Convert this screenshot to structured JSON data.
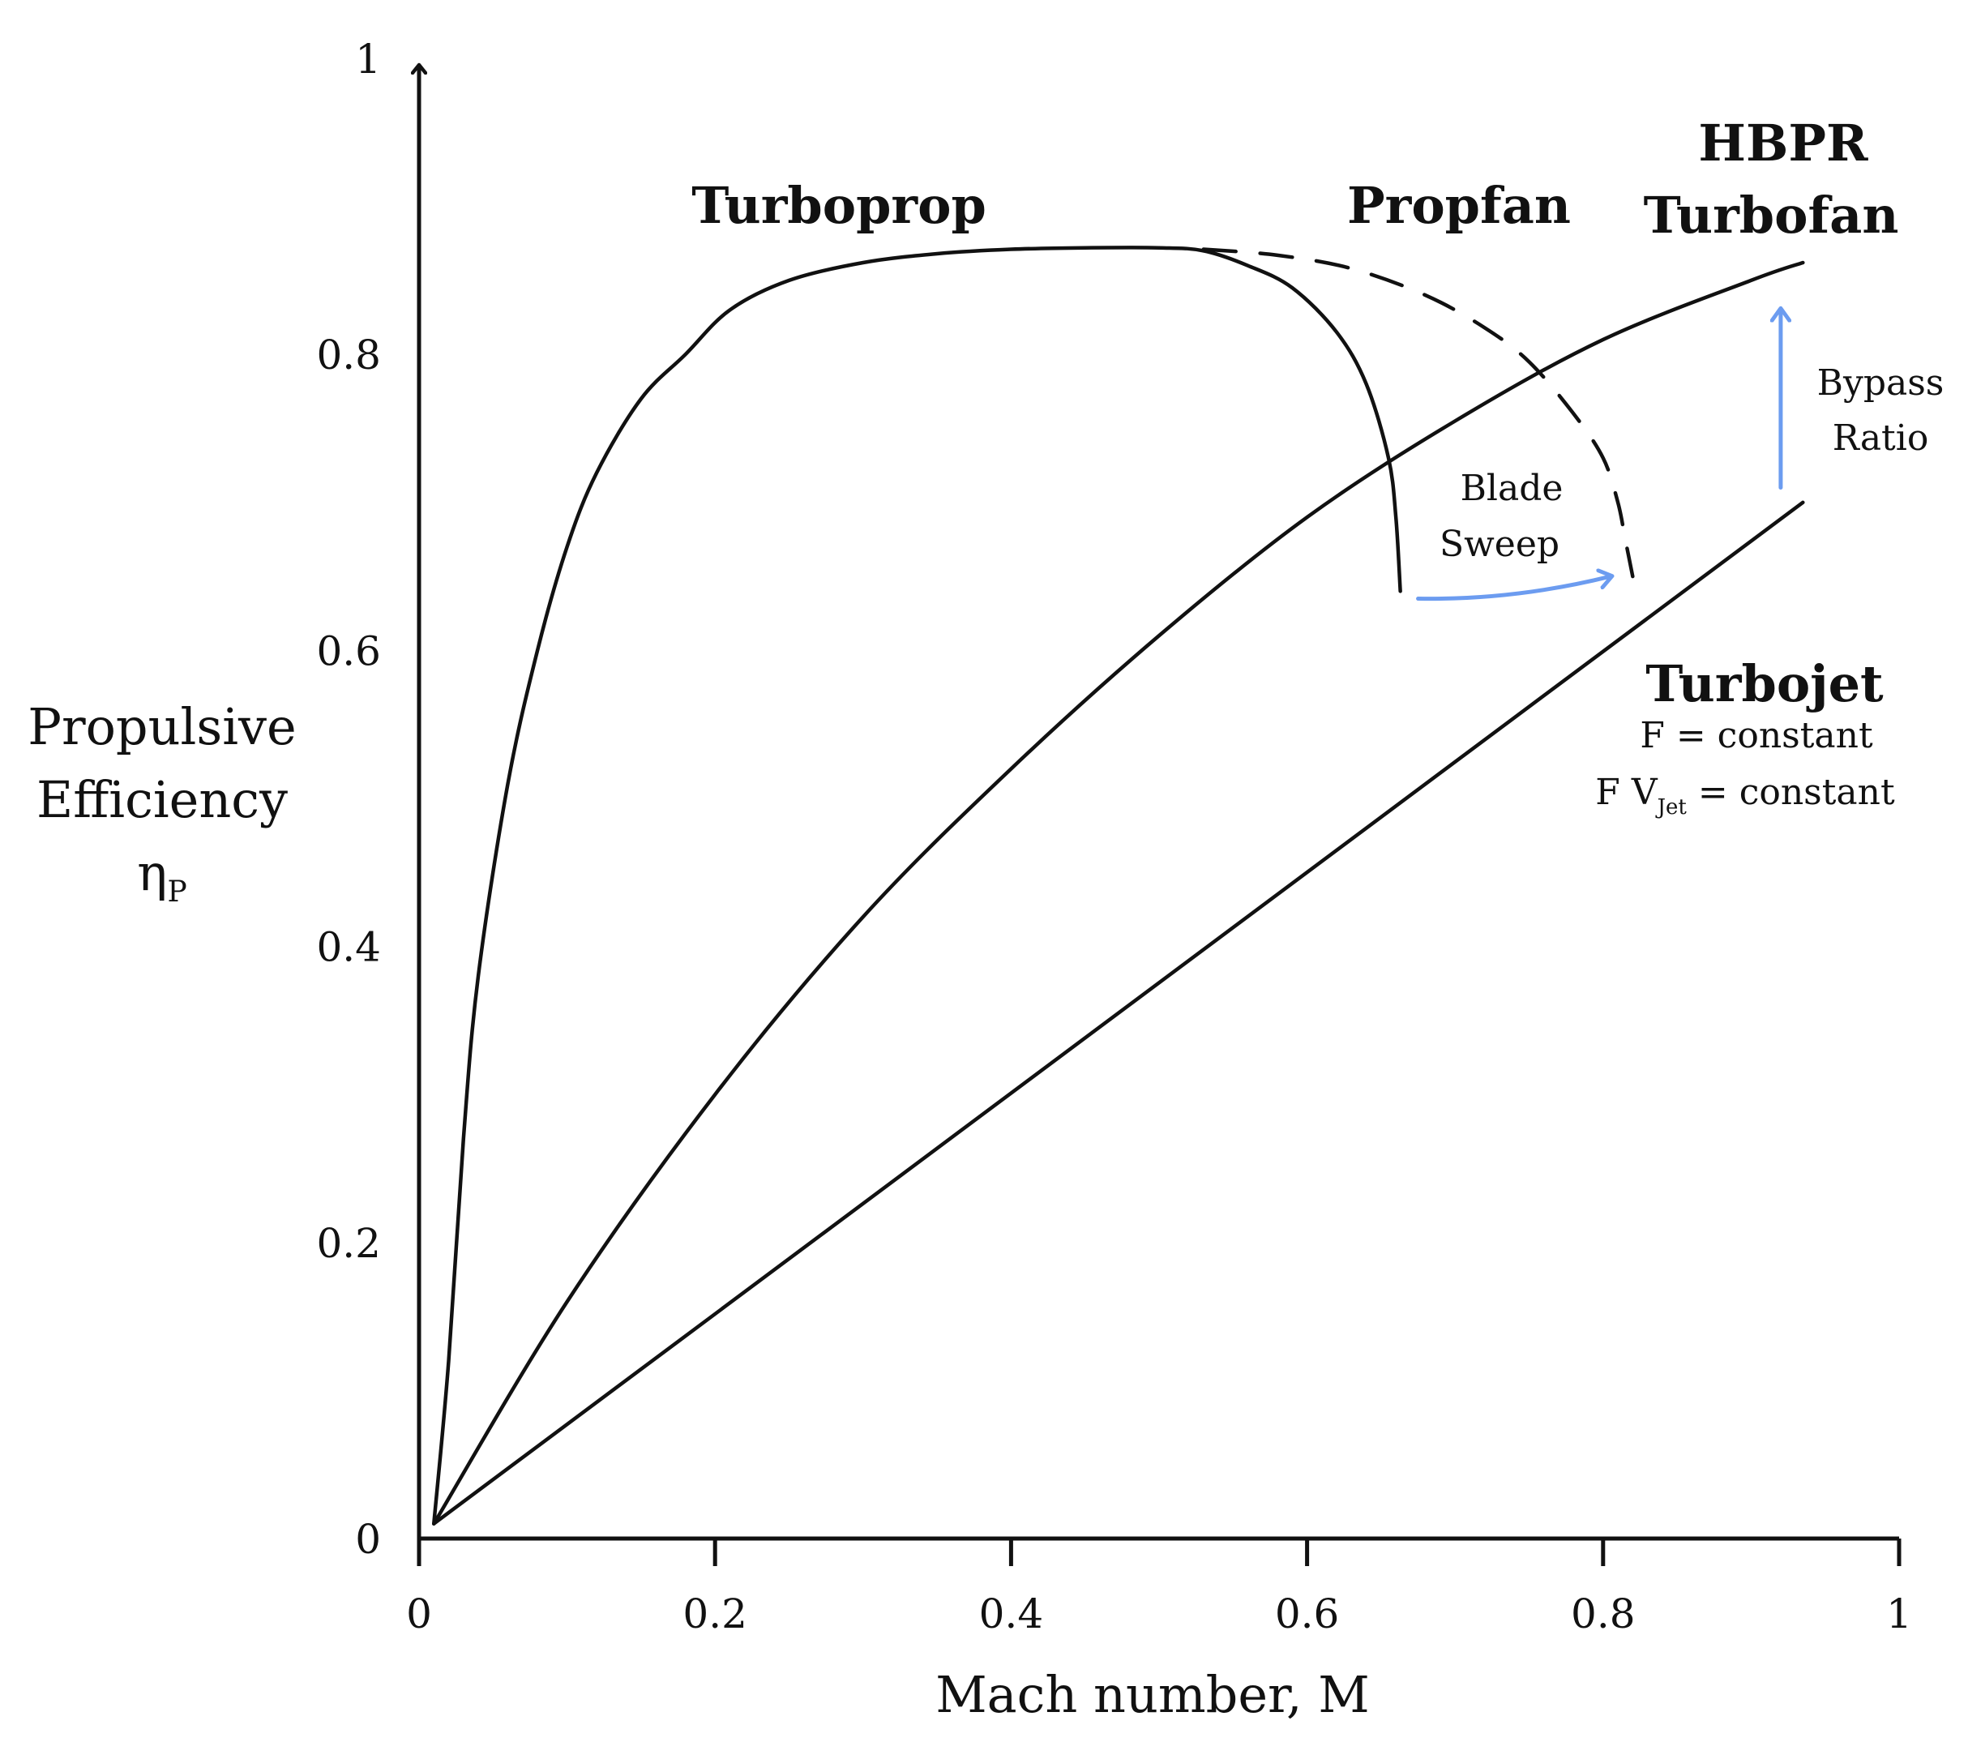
{
  "chart_data": {
    "type": "line",
    "xlabel": "Mach number, M",
    "ylabel_lines": [
      "Propulsive",
      "Efficiency"
    ],
    "ylabel_symbol": "η",
    "ylabel_subscript": "P",
    "xlim": [
      0,
      1
    ],
    "ylim": [
      0,
      1
    ],
    "x_ticks": [
      "0",
      "0.2",
      "0.4",
      "0.6",
      "0.8",
      "1"
    ],
    "x_tick_values": [
      0,
      0.2,
      0.4,
      0.6,
      0.8,
      1
    ],
    "y_ticks": [
      "0",
      "0.2",
      "0.4",
      "0.6",
      "0.8",
      "1"
    ],
    "y_tick_values": [
      0,
      0.2,
      0.4,
      0.6,
      0.8,
      1
    ],
    "grid": false,
    "series": [
      {
        "name": "Turboprop",
        "style": "solid",
        "x": [
          0.01,
          0.02,
          0.03,
          0.04,
          0.06,
          0.08,
          0.1,
          0.12,
          0.15,
          0.18,
          0.21,
          0.25,
          0.3,
          0.35,
          0.4,
          0.45,
          0.5,
          0.53,
          0.56,
          0.59,
          0.62,
          0.64,
          0.655,
          0.66,
          0.663
        ],
        "y": [
          0.01,
          0.12,
          0.27,
          0.38,
          0.51,
          0.6,
          0.67,
          0.72,
          0.77,
          0.8,
          0.83,
          0.85,
          0.862,
          0.868,
          0.871,
          0.872,
          0.872,
          0.87,
          0.86,
          0.845,
          0.815,
          0.78,
          0.73,
          0.69,
          0.64
        ]
      },
      {
        "name": "Propfan",
        "style": "dashed",
        "x": [
          0.53,
          0.58,
          0.63,
          0.68,
          0.72,
          0.75,
          0.78,
          0.8,
          0.81,
          0.815,
          0.82
        ],
        "y": [
          0.871,
          0.867,
          0.858,
          0.84,
          0.818,
          0.795,
          0.76,
          0.73,
          0.7,
          0.675,
          0.65
        ]
      },
      {
        "name": "HBPR Turbofan",
        "style": "solid",
        "x": [
          0.01,
          0.1,
          0.2,
          0.3,
          0.4,
          0.5,
          0.6,
          0.7,
          0.8,
          0.9,
          0.935
        ],
        "y": [
          0.01,
          0.16,
          0.3,
          0.42,
          0.52,
          0.61,
          0.69,
          0.755,
          0.81,
          0.85,
          0.862
        ]
      },
      {
        "name": "Turbojet",
        "style": "solid",
        "x": [
          0.01,
          0.935
        ],
        "y": [
          0.01,
          0.7
        ]
      }
    ],
    "labels": {
      "turboprop": "Turboprop",
      "propfan": "Propfan",
      "hbpr_line1": "HBPR",
      "hbpr_line2": "Turbofan",
      "turbojet": "Turbojet",
      "turbojet_note1": "F = constant",
      "turbojet_note2_prefix": "F V",
      "turbojet_note2_sub": "Jet",
      "turbojet_note2_suffix": " = constant",
      "blade_sweep_line1": "Blade",
      "blade_sweep_line2": "Sweep",
      "bypass_line1": "Bypass",
      "bypass_line2": "Ratio"
    },
    "annotations": [
      {
        "name": "Blade Sweep",
        "type": "arrow",
        "from": [
          0.675,
          0.635
        ],
        "to": [
          0.805,
          0.65
        ],
        "color": "#6c9cf0"
      },
      {
        "name": "Bypass Ratio",
        "type": "arrow",
        "from": [
          0.92,
          0.71
        ],
        "to": [
          0.92,
          0.83
        ],
        "color": "#6c9cf0"
      }
    ],
    "colors": {
      "curve": "#111111",
      "arrow": "#6c9cf0"
    }
  }
}
